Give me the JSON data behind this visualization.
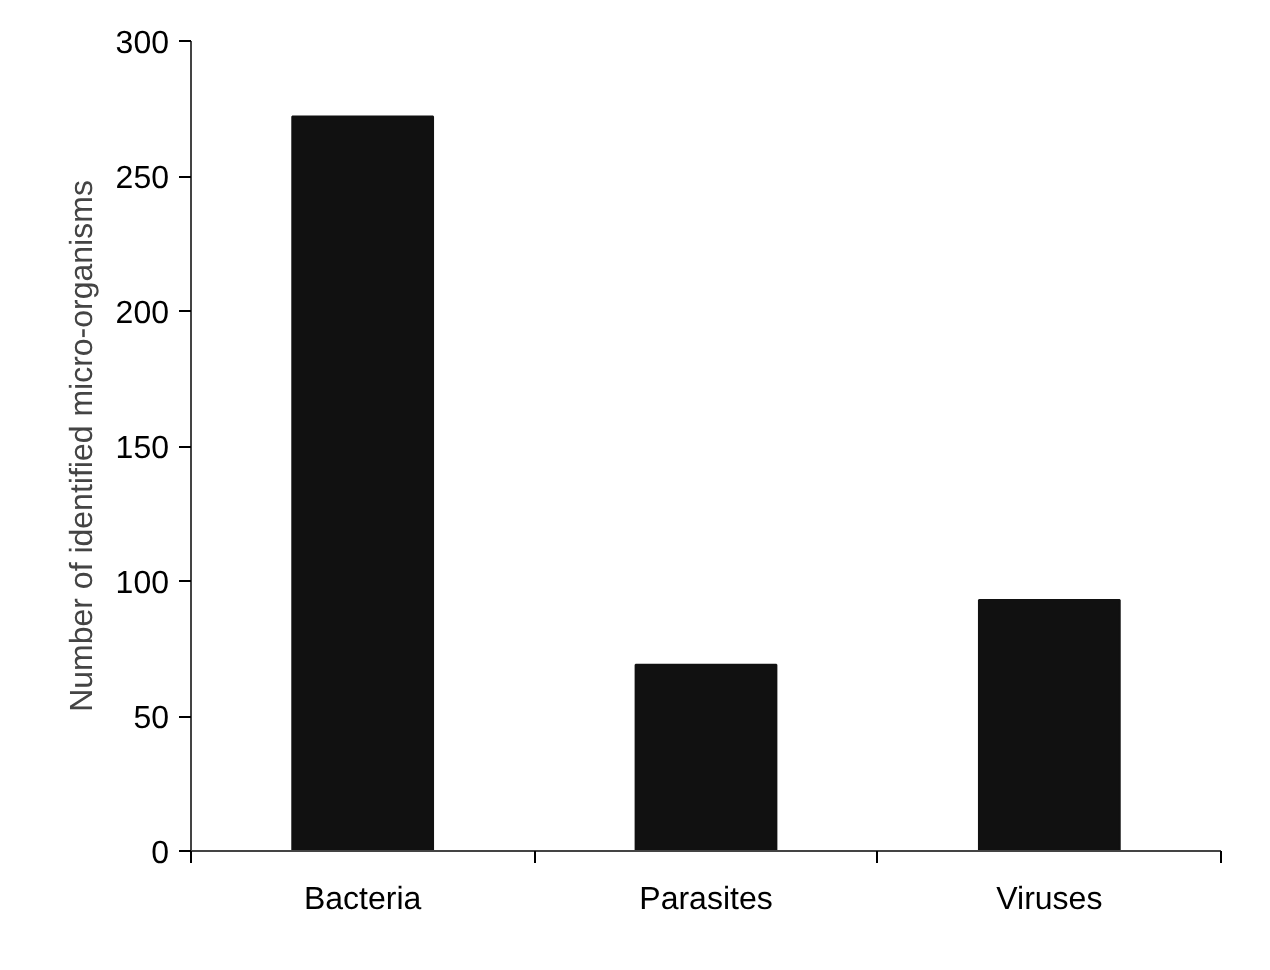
{
  "chart_data": {
    "type": "bar",
    "ylabel": "Number of identified micro-organisms",
    "categories": [
      "Bacteria",
      "Parasites",
      "Viruses"
    ],
    "values": [
      272,
      69,
      93
    ],
    "color": "#111111",
    "ylim": [
      0,
      300
    ],
    "yticks": [
      0,
      50,
      100,
      150,
      200,
      250,
      300
    ],
    "grid": false
  }
}
